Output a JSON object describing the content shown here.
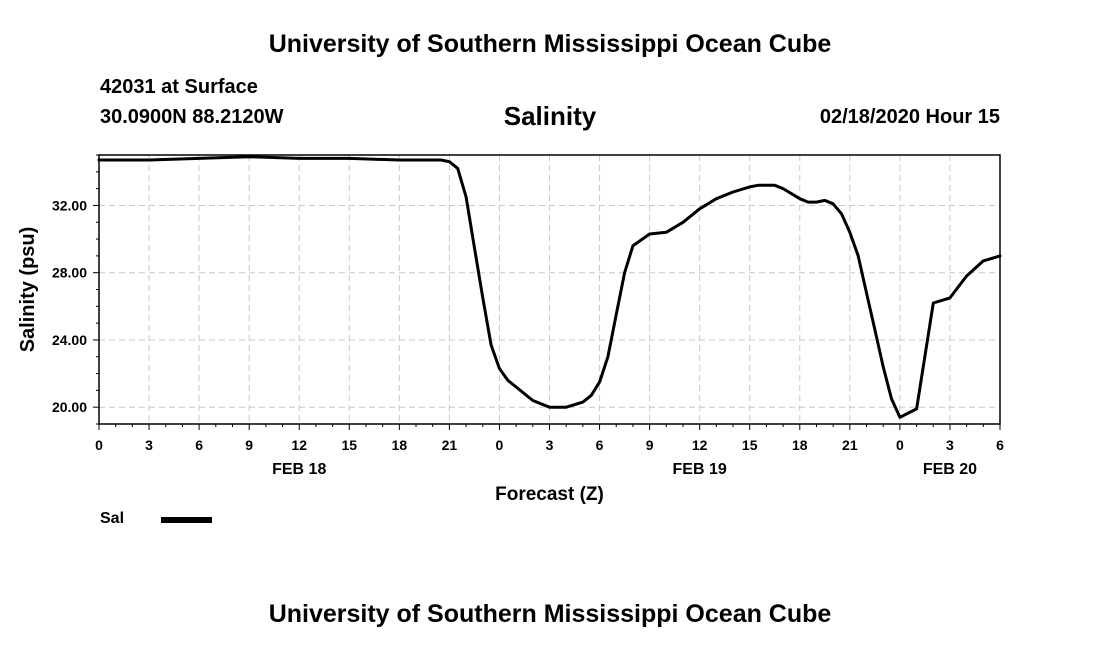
{
  "header": {
    "title": "University of Southern Mississippi Ocean Cube",
    "station": "42031 at Surface",
    "coords": "30.0900N 88.2120W",
    "date_hour": "02/18/2020 Hour 15"
  },
  "footer": {
    "title": "University of Southern Mississippi Ocean Cube"
  },
  "legend": {
    "label": "Sal",
    "color": "#000000"
  },
  "chart_data": {
    "type": "line",
    "title": "Salinity",
    "xlabel": "Forecast (Z)",
    "ylabel": "Salinity (psu)",
    "x_unit": "hours",
    "xlim": [
      0,
      54
    ],
    "ylim": [
      19,
      35
    ],
    "y_ticks": [
      20,
      24,
      28,
      32
    ],
    "y_tick_labels": [
      "20.00",
      "24.00",
      "28.00",
      "32.00"
    ],
    "x_ticks": [
      0,
      3,
      6,
      9,
      12,
      15,
      18,
      21,
      24,
      27,
      30,
      33,
      36,
      39,
      42,
      45,
      48,
      51,
      54
    ],
    "x_tick_labels": [
      "0",
      "3",
      "6",
      "9",
      "12",
      "15",
      "18",
      "21",
      "0",
      "3",
      "6",
      "9",
      "12",
      "15",
      "18",
      "21",
      "0",
      "3",
      "6"
    ],
    "date_labels": [
      {
        "x": 12,
        "label": "FEB 18"
      },
      {
        "x": 36,
        "label": "FEB 19"
      },
      {
        "x": 51,
        "label": "FEB 20"
      }
    ],
    "grid": true,
    "legend_position": "bottom-left",
    "series": [
      {
        "name": "Sal",
        "color": "#000000",
        "x": [
          0,
          3,
          6,
          9,
          12,
          15,
          18,
          20.5,
          21,
          21.5,
          22,
          22.5,
          23,
          23.5,
          24,
          24.5,
          25,
          26,
          27,
          28,
          29,
          29.5,
          30,
          30.5,
          31,
          31.5,
          32,
          33,
          34,
          35,
          36,
          37,
          38,
          39,
          39.5,
          40,
          40.5,
          41,
          42,
          42.5,
          43,
          43.5,
          44,
          44.5,
          45,
          45.5,
          46,
          46.5,
          47,
          47.5,
          48,
          49,
          50,
          51,
          52,
          53,
          54
        ],
        "y": [
          34.7,
          34.7,
          34.8,
          34.9,
          34.8,
          34.8,
          34.7,
          34.7,
          34.6,
          34.2,
          32.5,
          29.5,
          26.5,
          23.7,
          22.3,
          21.6,
          21.2,
          20.4,
          20.0,
          20.0,
          20.3,
          20.7,
          21.5,
          23.0,
          25.5,
          28.0,
          29.6,
          30.3,
          30.4,
          31.0,
          31.8,
          32.4,
          32.8,
          33.1,
          33.2,
          33.2,
          33.2,
          33.0,
          32.4,
          32.2,
          32.2,
          32.3,
          32.1,
          31.5,
          30.4,
          29.0,
          26.8,
          24.6,
          22.4,
          20.5,
          19.4,
          19.9,
          26.2,
          26.5,
          27.8,
          28.7,
          29.0
        ]
      }
    ]
  }
}
